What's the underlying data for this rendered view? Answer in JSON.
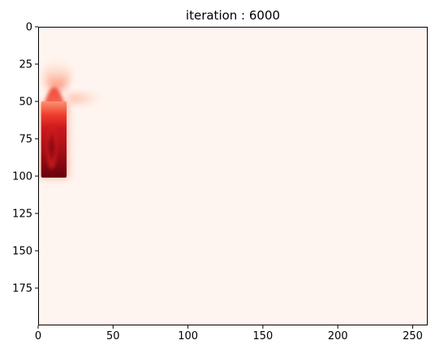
{
  "chart_data": {
    "type": "heatmap",
    "title": "iteration : 6000",
    "xlabel": "",
    "ylabel": "",
    "colormap": "Reds",
    "colormap_low": "#fff5f0",
    "colormap_high": "#67000d",
    "grid": false,
    "legend": "none",
    "xlim": [
      0,
      260
    ],
    "ylim": [
      200,
      0
    ],
    "y_inverted": true,
    "x_ticks": [
      0,
      50,
      100,
      150,
      200,
      250
    ],
    "y_ticks": [
      0,
      25,
      50,
      75,
      100,
      125,
      150,
      175
    ],
    "hot_region": {
      "x_range": [
        2,
        19
      ],
      "y_range": [
        28,
        101
      ],
      "peak": {
        "x": 9,
        "y": 93,
        "value": 1.0
      },
      "side_plume": {
        "x_range": [
          19,
          45
        ],
        "y_center": 48,
        "value": 0.3
      }
    }
  }
}
